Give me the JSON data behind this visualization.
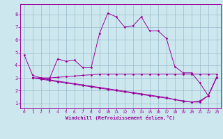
{
  "xlabel": "Windchill (Refroidissement éolien,°C)",
  "bg_color": "#cce8ee",
  "line_color": "#990099",
  "grid_color": "#99bbcc",
  "x_ticks": [
    0,
    1,
    2,
    3,
    4,
    5,
    6,
    7,
    8,
    9,
    10,
    11,
    12,
    13,
    14,
    15,
    16,
    17,
    18,
    19,
    20,
    21,
    22,
    23
  ],
  "y_ticks": [
    1,
    2,
    3,
    4,
    5,
    6,
    7,
    8
  ],
  "xlim": [
    -0.5,
    23.5
  ],
  "ylim": [
    0.6,
    8.8
  ],
  "lines": [
    {
      "x": [
        0,
        1,
        2,
        3,
        4,
        5,
        6,
        7,
        8,
        9,
        10,
        11,
        12,
        13,
        14,
        15,
        16,
        17,
        18,
        19,
        20,
        21,
        22,
        23
      ],
      "y": [
        4.8,
        3.2,
        3.0,
        2.9,
        4.5,
        4.3,
        4.4,
        3.8,
        3.8,
        6.5,
        8.1,
        7.8,
        7.0,
        7.1,
        7.8,
        6.7,
        6.7,
        6.1,
        3.9,
        3.4,
        3.4,
        2.6,
        1.6,
        3.0
      ]
    },
    {
      "x": [
        1,
        2,
        3,
        4,
        5,
        6,
        7,
        8,
        9,
        10,
        11,
        12,
        13,
        14,
        15,
        16,
        17,
        18,
        19,
        20,
        21,
        22,
        23
      ],
      "y": [
        3.0,
        3.0,
        3.0,
        3.05,
        3.1,
        3.15,
        3.2,
        3.25,
        3.3,
        3.3,
        3.3,
        3.3,
        3.3,
        3.3,
        3.3,
        3.3,
        3.3,
        3.3,
        3.3,
        3.3,
        3.3,
        3.3,
        3.3
      ]
    },
    {
      "x": [
        1,
        2,
        3,
        4,
        5,
        6,
        7,
        8,
        9,
        10,
        11,
        12,
        13,
        14,
        15,
        16,
        17,
        18,
        19,
        20,
        21,
        22,
        23
      ],
      "y": [
        3.0,
        2.95,
        2.85,
        2.75,
        2.65,
        2.55,
        2.45,
        2.35,
        2.25,
        2.15,
        2.05,
        1.95,
        1.85,
        1.75,
        1.65,
        1.55,
        1.45,
        1.3,
        1.15,
        1.1,
        1.2,
        1.6,
        3.05
      ]
    },
    {
      "x": [
        1,
        2,
        3,
        4,
        5,
        6,
        7,
        8,
        9,
        10,
        11,
        12,
        13,
        14,
        15,
        16,
        17,
        18,
        19,
        20,
        21,
        22,
        23
      ],
      "y": [
        3.0,
        2.9,
        2.8,
        2.7,
        2.6,
        2.5,
        2.4,
        2.3,
        2.2,
        2.1,
        2.0,
        1.9,
        1.8,
        1.7,
        1.6,
        1.5,
        1.4,
        1.3,
        1.2,
        1.1,
        1.1,
        1.6,
        3.05
      ]
    }
  ]
}
